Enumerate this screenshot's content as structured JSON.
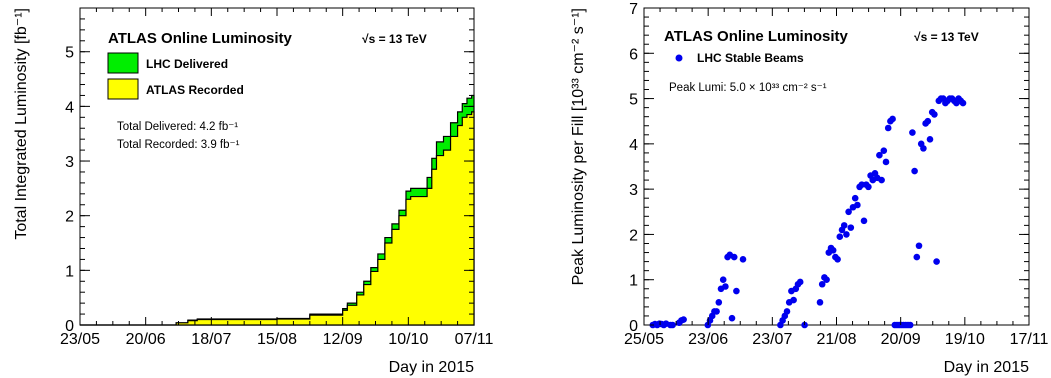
{
  "chart_data": [
    {
      "type": "area",
      "title": "ATLAS Online Luminosity",
      "energy_label": "√s = 13 TeV",
      "xlabel": "Day in 2015",
      "ylabel": "Total Integrated Luminosity [fb⁻¹]",
      "x_ticks": [
        "23/05",
        "20/06",
        "18/07",
        "15/08",
        "12/09",
        "10/10",
        "07/11"
      ],
      "y_ticks": [
        "0",
        "1",
        "2",
        "3",
        "4",
        "5"
      ],
      "xlim": [
        0,
        168
      ],
      "ylim": [
        0,
        5.8
      ],
      "grid": false,
      "legend_position": "top-left",
      "info": [
        "Total Delivered: 4.2 fb⁻¹",
        "Total Recorded: 3.9 fb⁻¹"
      ],
      "x_day": [
        0,
        37,
        41,
        46,
        50,
        56,
        70,
        84,
        98,
        105,
        112,
        114,
        118,
        121,
        124,
        127,
        130,
        133,
        136,
        139,
        141,
        143,
        146,
        148,
        150,
        152,
        155,
        158,
        161,
        163,
        165,
        167,
        168
      ],
      "series": [
        {
          "name": "LHC Delivered",
          "color": "#00ee00",
          "values": [
            0,
            0,
            0.04,
            0.09,
            0.11,
            0.11,
            0.11,
            0.12,
            0.2,
            0.2,
            0.3,
            0.4,
            0.6,
            0.8,
            1.05,
            1.3,
            1.6,
            1.85,
            2.1,
            2.45,
            2.5,
            2.5,
            2.5,
            2.7,
            3.05,
            3.35,
            3.45,
            3.7,
            3.9,
            4.05,
            4.15,
            4.2,
            4.2
          ]
        },
        {
          "name": "ATLAS Recorded",
          "color": "#ffff00",
          "values": [
            0,
            0,
            0.04,
            0.08,
            0.1,
            0.1,
            0.1,
            0.11,
            0.18,
            0.18,
            0.27,
            0.36,
            0.55,
            0.74,
            0.98,
            1.2,
            1.5,
            1.75,
            2.0,
            2.3,
            2.35,
            2.35,
            2.35,
            2.5,
            2.85,
            3.1,
            3.2,
            3.45,
            3.65,
            3.8,
            3.85,
            3.9,
            3.9
          ]
        }
      ]
    },
    {
      "type": "scatter",
      "title": "ATLAS Online Luminosity",
      "energy_label": "√s = 13 TeV",
      "xlabel": "Day in 2015",
      "ylabel": "Peak Luminosity per Fill [10³³ cm⁻² s⁻¹]",
      "x_ticks": [
        "25/05",
        "23/06",
        "23/07",
        "21/08",
        "20/09",
        "19/10",
        "17/11"
      ],
      "y_ticks": [
        "0",
        "1",
        "2",
        "3",
        "4",
        "5",
        "6",
        "7"
      ],
      "xlim": [
        0,
        175
      ],
      "ylim": [
        0,
        7
      ],
      "grid": false,
      "legend_position": "top-left",
      "info": [
        "Peak Lumi: 5.0 × 10³³ cm⁻² s⁻¹"
      ],
      "series": [
        {
          "name": "LHC Stable Beams",
          "color": "#0000ee",
          "x_day": [
            4,
            5,
            6,
            7,
            8,
            9,
            10,
            12,
            13,
            16,
            17,
            18,
            29,
            30,
            31,
            32,
            33,
            34,
            35,
            36,
            37,
            38,
            39,
            40,
            41,
            42,
            45,
            62,
            63,
            64,
            65,
            66,
            67,
            68,
            69,
            70,
            71,
            73,
            80,
            81,
            82,
            83,
            84,
            85,
            86,
            87,
            88,
            89,
            90,
            91,
            92,
            93,
            94,
            95,
            96,
            97,
            98,
            99,
            100,
            101,
            102,
            103,
            104,
            105,
            106,
            107,
            108,
            109,
            110,
            111,
            112,
            113,
            114,
            115,
            116,
            117,
            118,
            119,
            120,
            121,
            122,
            123,
            124,
            125,
            126,
            127,
            128,
            129,
            130,
            131,
            132,
            133,
            134,
            135,
            136,
            137,
            138,
            139,
            140,
            141,
            142,
            143,
            144,
            145
          ],
          "values": [
            0.0,
            0.02,
            0.0,
            0.03,
            0.02,
            0.0,
            0.03,
            0.0,
            0.0,
            0.05,
            0.1,
            0.12,
            0.0,
            0.1,
            0.2,
            0.3,
            0.3,
            0.5,
            0.8,
            1.0,
            0.85,
            1.5,
            1.55,
            0.15,
            1.5,
            0.75,
            1.45,
            0.0,
            0.1,
            0.2,
            0.3,
            0.5,
            0.75,
            0.55,
            0.8,
            0.9,
            0.95,
            0.0,
            0.5,
            0.9,
            1.05,
            1.0,
            1.6,
            1.7,
            1.65,
            1.5,
            1.45,
            1.95,
            2.1,
            2.2,
            2.0,
            2.5,
            2.15,
            2.6,
            2.8,
            2.65,
            3.05,
            3.1,
            2.3,
            3.1,
            3.05,
            3.3,
            3.2,
            3.35,
            3.25,
            3.75,
            3.2,
            3.85,
            3.6,
            4.35,
            4.5,
            4.55,
            0.0,
            0.0,
            0.0,
            0.0,
            0.0,
            0.0,
            0.0,
            0.0,
            4.25,
            3.4,
            1.5,
            1.75,
            4.0,
            3.9,
            4.45,
            4.5,
            4.1,
            4.7,
            4.65,
            1.4,
            4.95,
            5.0,
            5.0,
            4.9,
            4.95,
            5.0,
            5.0,
            4.95,
            4.9,
            5.0,
            4.95,
            4.9
          ]
        }
      ]
    }
  ]
}
